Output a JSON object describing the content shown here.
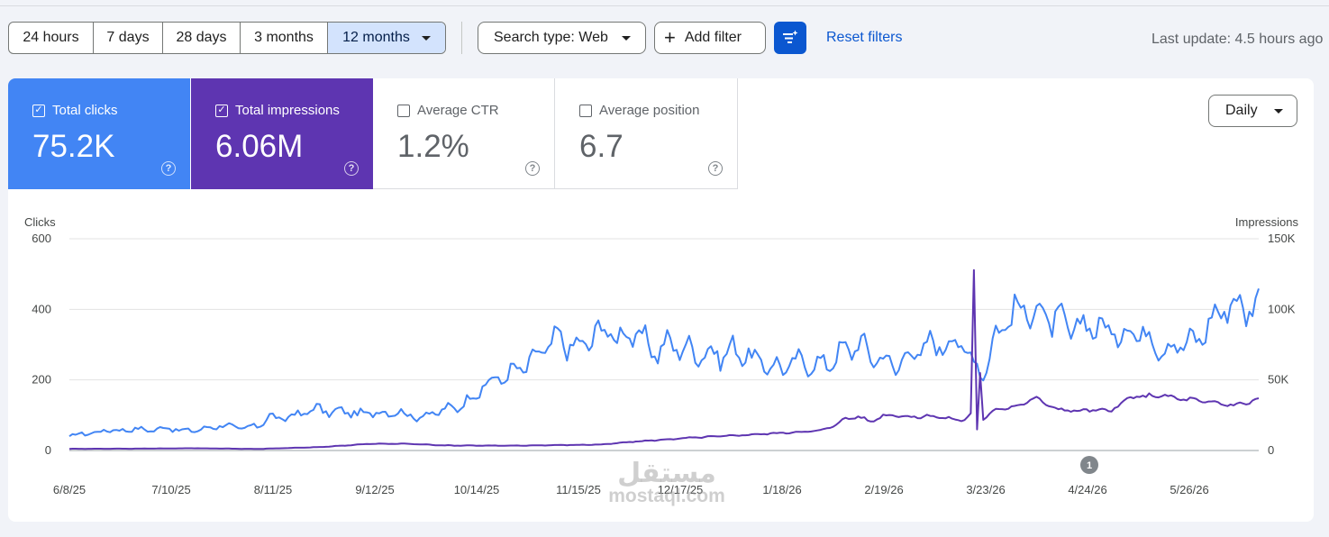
{
  "toolbar": {
    "ranges": [
      "24 hours",
      "7 days",
      "28 days",
      "3 months",
      "12 months"
    ],
    "selected_range": "12 months",
    "search_type": "Search type: Web",
    "add_filter": "Add filter",
    "reset_filters": "Reset filters",
    "last_update": "Last update: 4.5 hours ago"
  },
  "metrics": {
    "clicks": {
      "label": "Total clicks",
      "value": "75.2K",
      "checked": true,
      "color": "#4285f4"
    },
    "impressions": {
      "label": "Total impressions",
      "value": "6.06M",
      "checked": true,
      "color": "#5e35b1"
    },
    "ctr": {
      "label": "Average CTR",
      "value": "1.2%",
      "checked": false
    },
    "position": {
      "label": "Average position",
      "value": "6.7",
      "checked": false
    }
  },
  "granularity": "Daily",
  "annotation_marker": "1",
  "watermark": {
    "arabic": "مستقل",
    "latin": "mostaql.com"
  },
  "chart_data": {
    "type": "line",
    "left_axis": {
      "label": "Clicks",
      "ticks": [
        "0",
        "200",
        "400",
        "600"
      ],
      "ylim": [
        0,
        600
      ]
    },
    "right_axis": {
      "label": "Impressions",
      "ticks": [
        "0",
        "50K",
        "100K",
        "150K"
      ],
      "ylim": [
        0,
        150000
      ]
    },
    "x_ticks": [
      "6/8/25",
      "7/10/25",
      "8/11/25",
      "9/12/25",
      "10/14/25",
      "11/15/25",
      "12/17/25",
      "1/18/26",
      "2/19/26",
      "3/23/26",
      "4/24/26",
      "5/26/26"
    ],
    "series": [
      {
        "name": "Clicks",
        "axis": "left",
        "color": "#4285f4",
        "keypoints": [
          [
            0,
            38
          ],
          [
            4,
            50
          ],
          [
            8,
            48
          ],
          [
            12,
            60
          ],
          [
            16,
            55
          ],
          [
            20,
            62
          ],
          [
            24,
            58
          ],
          [
            28,
            60
          ],
          [
            32,
            65
          ],
          [
            36,
            55
          ],
          [
            40,
            58
          ],
          [
            44,
            62
          ],
          [
            48,
            72
          ],
          [
            52,
            68
          ],
          [
            56,
            62
          ],
          [
            60,
            70
          ],
          [
            64,
            95
          ],
          [
            68,
            90
          ],
          [
            72,
            100
          ],
          [
            76,
            110
          ],
          [
            80,
            120
          ],
          [
            84,
            105
          ],
          [
            88,
            115
          ],
          [
            92,
            100
          ],
          [
            96,
            110
          ],
          [
            100,
            105
          ],
          [
            104,
            112
          ],
          [
            108,
            100
          ],
          [
            112,
            95
          ],
          [
            116,
            105
          ],
          [
            120,
            115
          ],
          [
            124,
            125
          ],
          [
            128,
            145
          ],
          [
            132,
            180
          ],
          [
            136,
            200
          ],
          [
            140,
            215
          ],
          [
            144,
            230
          ],
          [
            148,
            255
          ],
          [
            152,
            290
          ],
          [
            156,
            315
          ],
          [
            160,
            300
          ],
          [
            164,
            290
          ],
          [
            168,
            335
          ],
          [
            172,
            340
          ],
          [
            176,
            320
          ],
          [
            180,
            335
          ],
          [
            184,
            305
          ],
          [
            188,
            280
          ],
          [
            192,
            305
          ],
          [
            196,
            290
          ],
          [
            200,
            280
          ],
          [
            204,
            275
          ],
          [
            208,
            270
          ],
          [
            212,
            285
          ],
          [
            216,
            275
          ],
          [
            220,
            250
          ],
          [
            224,
            240
          ],
          [
            228,
            235
          ],
          [
            232,
            250
          ],
          [
            236,
            250
          ],
          [
            240,
            240
          ],
          [
            244,
            260
          ],
          [
            248,
            285
          ],
          [
            252,
            305
          ],
          [
            256,
            270
          ],
          [
            260,
            260
          ],
          [
            264,
            235
          ],
          [
            268,
            275
          ],
          [
            272,
            280
          ],
          [
            276,
            305
          ],
          [
            280,
            300
          ],
          [
            284,
            315
          ],
          [
            288,
            260
          ],
          [
            292,
            220
          ],
          [
            296,
            325
          ],
          [
            300,
            380
          ],
          [
            304,
            395
          ],
          [
            308,
            405
          ],
          [
            312,
            375
          ],
          [
            316,
            365
          ],
          [
            320,
            345
          ],
          [
            324,
            350
          ],
          [
            328,
            360
          ],
          [
            332,
            335
          ],
          [
            336,
            330
          ],
          [
            340,
            345
          ],
          [
            344,
            325
          ],
          [
            348,
            300
          ],
          [
            352,
            290
          ],
          [
            356,
            310
          ],
          [
            360,
            305
          ],
          [
            364,
            360
          ],
          [
            368,
            395
          ],
          [
            370,
            420
          ],
          [
            372,
            410
          ]
        ]
      },
      {
        "name": "Impressions",
        "axis": "right",
        "color": "#5e35b1",
        "keypoints": [
          [
            0,
            1200
          ],
          [
            20,
            1300
          ],
          [
            40,
            1600
          ],
          [
            60,
            1100
          ],
          [
            80,
            2400
          ],
          [
            96,
            4700
          ],
          [
            108,
            4800
          ],
          [
            120,
            3600
          ],
          [
            140,
            3400
          ],
          [
            160,
            3900
          ],
          [
            170,
            4200
          ],
          [
            180,
            6200
          ],
          [
            200,
            9200
          ],
          [
            220,
            11500
          ],
          [
            232,
            13000
          ],
          [
            240,
            14000
          ],
          [
            244,
            17500
          ],
          [
            248,
            22500
          ],
          [
            252,
            24000
          ],
          [
            256,
            20500
          ],
          [
            260,
            24500
          ],
          [
            264,
            25500
          ],
          [
            268,
            23500
          ],
          [
            272,
            24000
          ],
          [
            276,
            24500
          ],
          [
            280,
            23000
          ],
          [
            284,
            21500
          ],
          [
            286,
            22000
          ],
          [
            288,
            26000
          ],
          [
            289,
            123000
          ],
          [
            290,
            15000
          ],
          [
            291,
            55000
          ],
          [
            292,
            22000
          ],
          [
            296,
            29000
          ],
          [
            300,
            31000
          ],
          [
            304,
            32000
          ],
          [
            308,
            37500
          ],
          [
            312,
            33000
          ],
          [
            316,
            29000
          ],
          [
            320,
            28500
          ],
          [
            324,
            28000
          ],
          [
            328,
            29000
          ],
          [
            332,
            27500
          ],
          [
            336,
            33000
          ],
          [
            340,
            38500
          ],
          [
            344,
            38000
          ],
          [
            348,
            39500
          ],
          [
            352,
            37500
          ],
          [
            356,
            36500
          ],
          [
            360,
            35500
          ],
          [
            364,
            34000
          ],
          [
            368,
            33500
          ],
          [
            372,
            32000
          ],
          [
            376,
            34000
          ],
          [
            380,
            36000
          ],
          [
            384,
            33500
          ],
          [
            388,
            38000
          ],
          [
            392,
            51000
          ],
          [
            396,
            32000
          ],
          [
            398,
            27500
          ],
          [
            404,
            33000
          ],
          [
            410,
            29000
          ],
          [
            416,
            27000
          ],
          [
            422,
            37000
          ],
          [
            428,
            31000
          ]
        ]
      }
    ],
    "grid": true,
    "markers": [
      {
        "x_label": "4/24/26",
        "text": "1"
      }
    ]
  }
}
